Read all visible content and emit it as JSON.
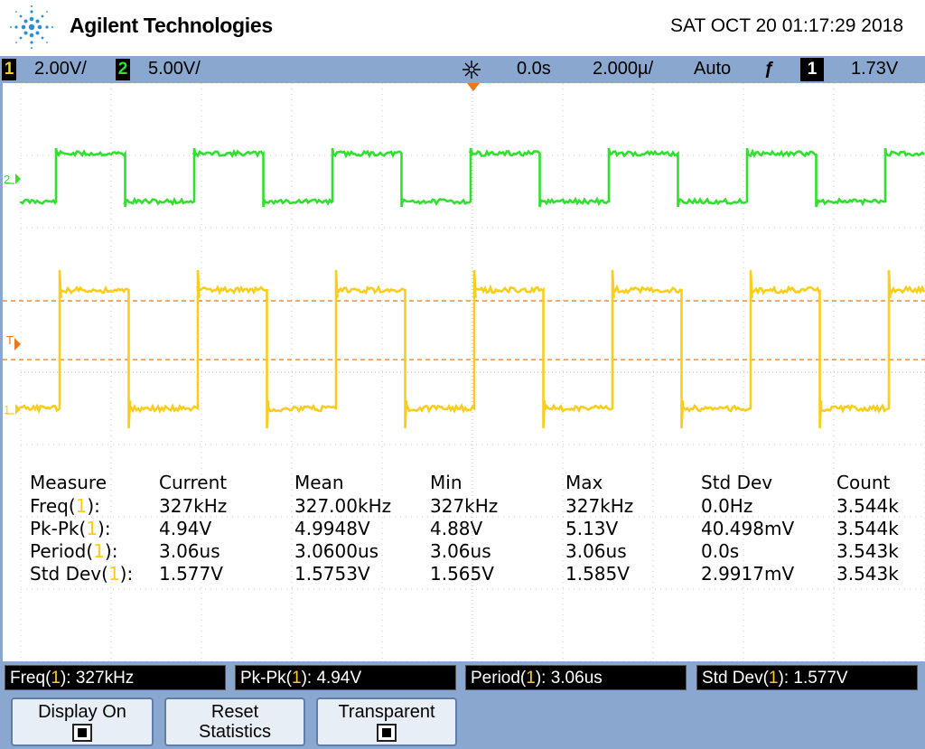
{
  "header": {
    "brand": "Agilent Technologies",
    "datetime": "SAT OCT 20 01:17:29 2018"
  },
  "status": {
    "ch1_num": "1",
    "ch1_scale": "2.00V/",
    "ch2_num": "2",
    "ch2_scale": "5.00V/",
    "time_delay": "0.0s",
    "time_scale": "2.000µ/",
    "trigger_mode": "Auto",
    "trigger_slope_symbol": "ƒ",
    "trigger_source": "1",
    "trigger_level": "1.73V"
  },
  "markers": {
    "ch2_marker": "2",
    "trigger_marker": "T",
    "ch1_marker": "1"
  },
  "colors": {
    "channel1": "#f8cd1c",
    "channel2": "#2fe02f",
    "trigger_level_line": "#e8791e",
    "panel": "#89a7cf"
  },
  "measurements": {
    "headers": [
      "Measure",
      "Current",
      "Mean",
      "Min",
      "Max",
      "Std Dev",
      "Count"
    ],
    "rows": [
      {
        "name": "Freq(",
        "ch": "1",
        "close": "):",
        "current": "327kHz",
        "mean": "327.00kHz",
        "min": "327kHz",
        "max": "327kHz",
        "std": "0.0Hz",
        "count": "3.544k"
      },
      {
        "name": "Pk-Pk(",
        "ch": "1",
        "close": "):",
        "current": "4.94V",
        "mean": "4.9948V",
        "min": "4.88V",
        "max": "5.13V",
        "std": "40.498mV",
        "count": "3.544k"
      },
      {
        "name": "Period(",
        "ch": "1",
        "close": "):",
        "current": "3.06us",
        "mean": "3.0600us",
        "min": "3.06us",
        "max": "3.06us",
        "std": "0.0s",
        "count": "3.543k"
      },
      {
        "name": "Std Dev(",
        "ch": "1",
        "close": "):",
        "current": "1.577V",
        "mean": "1.5753V",
        "min": "1.565V",
        "max": "1.585V",
        "std": "2.9917mV",
        "count": "3.543k"
      }
    ]
  },
  "summary": [
    {
      "name": "Freq(",
      "ch": "1",
      "value": "): 327kHz"
    },
    {
      "name": "Pk-Pk(",
      "ch": "1",
      "value": "): 4.94V"
    },
    {
      "name": "Period(",
      "ch": "1",
      "value": "): 3.06us"
    },
    {
      "name": "Std Dev(",
      "ch": "1",
      "value": "): 1.577V"
    }
  ],
  "softkeys": [
    {
      "label1": "Display On",
      "label2": "",
      "checkbox": true,
      "checked": true
    },
    {
      "label1": "Reset",
      "label2": "Statistics",
      "checkbox": false,
      "checked": false
    },
    {
      "label1": "Transparent",
      "label2": "",
      "checkbox": true,
      "checked": true
    }
  ]
}
